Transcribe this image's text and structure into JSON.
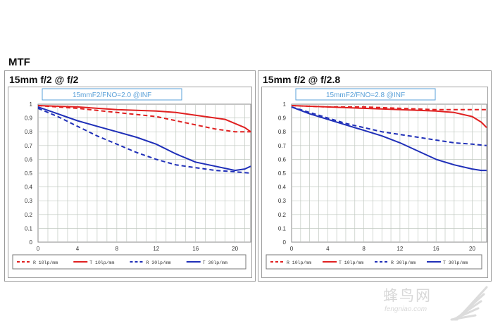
{
  "page": {
    "heading": "MTF",
    "watermark": {
      "text": "蜂鸟网",
      "subtext": "fengniao.com"
    }
  },
  "colors": {
    "red": "#e02020",
    "blue": "#1f2fb8",
    "grid": "#c0c8c0",
    "label_box": "#5aa0d8"
  },
  "chart_data": [
    {
      "type": "line",
      "title": "15mm f/2 @ f/2",
      "subtitle": "15mmF2/FNO=2.0 @INF",
      "xlim": [
        0,
        21.6
      ],
      "ylim": [
        0,
        1
      ],
      "xticks": [
        0,
        4,
        8,
        12,
        16,
        20
      ],
      "yticks": [
        0,
        0.1,
        0.2,
        0.3,
        0.4,
        0.5,
        0.6,
        0.7,
        0.8,
        0.9,
        1
      ],
      "ytick_labels": [
        "0",
        "0.1",
        "0.2",
        "0.3",
        "0.4",
        "0.5",
        "0.6",
        "0.7",
        "0.8",
        "0.9",
        "1"
      ],
      "grid": true,
      "legend_position": "bottom",
      "series": [
        {
          "name": "R 10lp/mm",
          "color": "#e02020",
          "dash": "dashed",
          "x": [
            0,
            4,
            8,
            12,
            14,
            16,
            18,
            20,
            21,
            21.6
          ],
          "y": [
            0.99,
            0.97,
            0.94,
            0.91,
            0.88,
            0.85,
            0.82,
            0.8,
            0.8,
            0.8
          ]
        },
        {
          "name": "T 10lp/mm",
          "color": "#e02020",
          "dash": "solid",
          "x": [
            0,
            4,
            8,
            12,
            14,
            16,
            18,
            19,
            20,
            21,
            21.6
          ],
          "y": [
            0.99,
            0.98,
            0.96,
            0.95,
            0.94,
            0.92,
            0.9,
            0.89,
            0.86,
            0.83,
            0.8
          ]
        },
        {
          "name": "R 30lp/mm",
          "color": "#1f2fb8",
          "dash": "dashed",
          "x": [
            0,
            2,
            4,
            6,
            8,
            10,
            12,
            14,
            16,
            18,
            20,
            21.6
          ],
          "y": [
            0.97,
            0.91,
            0.84,
            0.77,
            0.71,
            0.65,
            0.6,
            0.56,
            0.54,
            0.52,
            0.51,
            0.5
          ]
        },
        {
          "name": "T 30lp/mm",
          "color": "#1f2fb8",
          "dash": "solid",
          "x": [
            0,
            2,
            4,
            6,
            8,
            10,
            12,
            14,
            16,
            18,
            20,
            21,
            21.6
          ],
          "y": [
            0.98,
            0.93,
            0.88,
            0.84,
            0.8,
            0.76,
            0.71,
            0.64,
            0.58,
            0.55,
            0.52,
            0.53,
            0.55
          ]
        }
      ]
    },
    {
      "type": "line",
      "title": "15mm f/2 @ f/2.8",
      "subtitle": "15mmF2/FNO=2.8 @INF",
      "xlim": [
        0,
        21.6
      ],
      "ylim": [
        0,
        1
      ],
      "xticks": [
        0,
        4,
        8,
        12,
        16,
        20
      ],
      "yticks": [
        0,
        0.1,
        0.2,
        0.3,
        0.4,
        0.5,
        0.6,
        0.7,
        0.8,
        0.9,
        1
      ],
      "ytick_labels": [
        "0",
        "0.1",
        "0.2",
        "0.3",
        "0.4",
        "0.5",
        "0.6",
        "0.7",
        "0.8",
        "0.9",
        "1"
      ],
      "grid": true,
      "legend_position": "bottom",
      "series": [
        {
          "name": "R 10lp/mm",
          "color": "#e02020",
          "dash": "dashed",
          "x": [
            0,
            4,
            8,
            12,
            16,
            20,
            21.6
          ],
          "y": [
            0.99,
            0.98,
            0.98,
            0.97,
            0.96,
            0.96,
            0.96
          ]
        },
        {
          "name": "T 10lp/mm",
          "color": "#e02020",
          "dash": "solid",
          "x": [
            0,
            4,
            8,
            12,
            16,
            18,
            20,
            21,
            21.6
          ],
          "y": [
            0.99,
            0.98,
            0.97,
            0.96,
            0.95,
            0.94,
            0.91,
            0.87,
            0.83
          ]
        },
        {
          "name": "R 30lp/mm",
          "color": "#1f2fb8",
          "dash": "dashed",
          "x": [
            0,
            2,
            4,
            6,
            8,
            10,
            12,
            14,
            16,
            18,
            20,
            21.6
          ],
          "y": [
            0.98,
            0.94,
            0.9,
            0.86,
            0.83,
            0.8,
            0.78,
            0.76,
            0.74,
            0.72,
            0.71,
            0.7
          ]
        },
        {
          "name": "T 30lp/mm",
          "color": "#1f2fb8",
          "dash": "solid",
          "x": [
            0,
            2,
            4,
            6,
            8,
            10,
            12,
            14,
            16,
            18,
            20,
            21,
            21.6
          ],
          "y": [
            0.98,
            0.93,
            0.89,
            0.85,
            0.81,
            0.77,
            0.72,
            0.66,
            0.6,
            0.56,
            0.53,
            0.52,
            0.52
          ]
        }
      ]
    }
  ]
}
